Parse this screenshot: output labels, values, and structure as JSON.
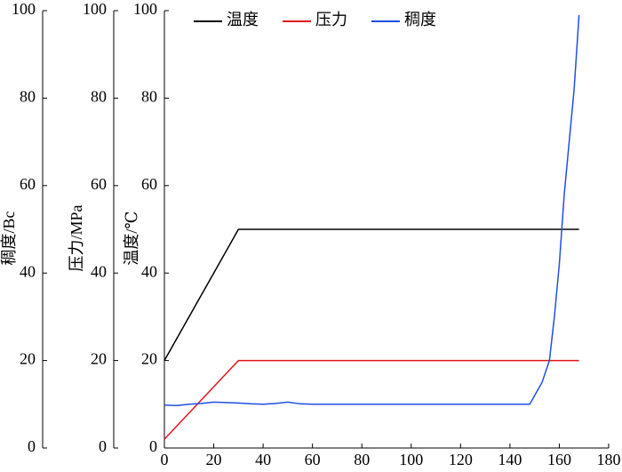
{
  "chart_data": {
    "type": "line",
    "x": [
      0,
      5,
      10,
      15,
      20,
      25,
      30,
      35,
      40,
      45,
      50,
      55,
      60,
      100,
      148,
      150,
      153,
      156,
      158,
      160,
      162,
      164,
      166,
      168
    ],
    "xlim": [
      0,
      180
    ],
    "xticks": [
      0,
      20,
      40,
      60,
      80,
      100,
      120,
      140,
      160,
      180
    ],
    "ylabel": "温度/℃",
    "ylim": [
      0,
      100
    ],
    "yticks": [
      0,
      20,
      40,
      60,
      80,
      100
    ],
    "y2label": "压力/MPa",
    "y2lim": [
      0,
      100
    ],
    "y2ticks": [
      0,
      20,
      40,
      60,
      80,
      100
    ],
    "y3label": "稠度/Bc",
    "y3lim": [
      0,
      100
    ],
    "y3ticks": [
      0,
      20,
      40,
      60,
      80,
      100
    ],
    "legend": "upper center",
    "series": [
      {
        "name": "温度",
        "color": "#000000",
        "axis": "y",
        "values": [
          20,
          25,
          30,
          35,
          40,
          45,
          50,
          50,
          50,
          50,
          50,
          50,
          50,
          50,
          50,
          50,
          50,
          50,
          50,
          50,
          50,
          50,
          50,
          50
        ]
      },
      {
        "name": "压力",
        "color": "#e0141e",
        "axis": "y2",
        "values": [
          2,
          5,
          8,
          11,
          14,
          17,
          20,
          20,
          20,
          20,
          20,
          20,
          20,
          20,
          20,
          20,
          20,
          20,
          20,
          20,
          20,
          20,
          20,
          20
        ]
      },
      {
        "name": "稠度",
        "color": "#1f4fe0",
        "axis": "y3",
        "values": [
          9.8,
          9.7,
          10,
          10.2,
          10.5,
          10.4,
          10.3,
          10.1,
          10,
          10.2,
          10.5,
          10.1,
          10,
          10,
          10,
          12,
          15,
          20,
          30,
          42,
          58,
          70,
          82,
          99
        ]
      }
    ]
  }
}
